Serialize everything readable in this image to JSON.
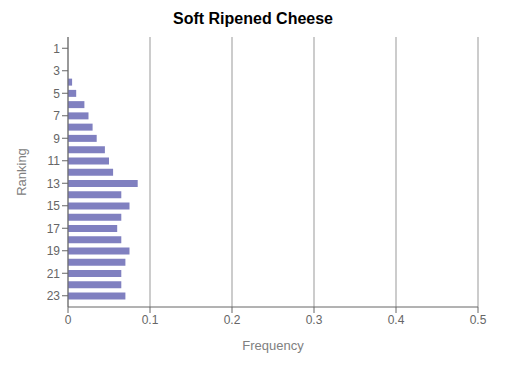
{
  "chart_data": {
    "type": "bar",
    "orientation": "horizontal",
    "title": "Soft Ripened Cheese",
    "xlabel": "Frequency",
    "ylabel": "Ranking",
    "categories": [
      1,
      2,
      3,
      4,
      5,
      6,
      7,
      8,
      9,
      10,
      11,
      12,
      13,
      14,
      15,
      16,
      17,
      18,
      19,
      20,
      21,
      22,
      23
    ],
    "values": [
      0.0,
      0.0,
      0.0,
      0.005,
      0.01,
      0.02,
      0.025,
      0.03,
      0.035,
      0.045,
      0.05,
      0.055,
      0.085,
      0.065,
      0.075,
      0.065,
      0.06,
      0.065,
      0.075,
      0.07,
      0.065,
      0.065,
      0.07
    ],
    "color": "#8080c0",
    "xlim": [
      0,
      0.5
    ],
    "xticks": [
      0,
      0.1,
      0.2,
      0.3,
      0.4,
      0.5
    ],
    "ylim": [
      0,
      24
    ],
    "yticks": [
      1,
      3,
      5,
      7,
      9,
      11,
      13,
      15,
      17,
      19,
      21,
      23
    ],
    "grid": true
  }
}
